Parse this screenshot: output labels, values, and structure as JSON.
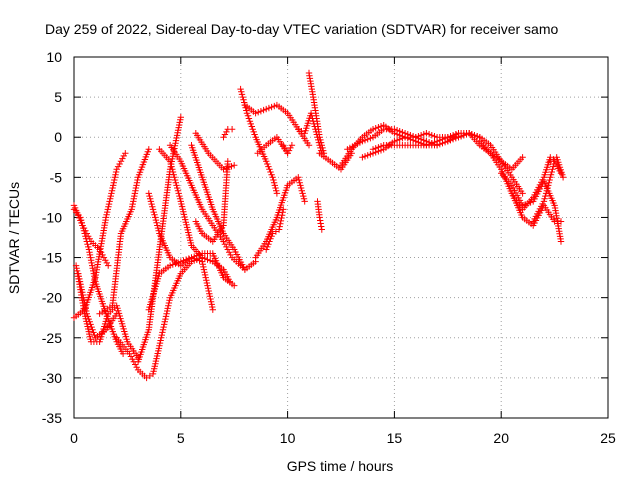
{
  "chart_data": {
    "type": "scatter",
    "title": "Day 259 of 2022, Sidereal Day-to-day VTEC variation (SDTVAR) for receiver samo",
    "xlabel": "GPS time / hours",
    "ylabel": "SDTVAR / TECUs",
    "xlim": [
      0,
      25
    ],
    "ylim": [
      -35,
      10
    ],
    "xticks": [
      0,
      5,
      10,
      15,
      20,
      25
    ],
    "yticks": [
      -35,
      -30,
      -25,
      -20,
      -15,
      -10,
      -5,
      0,
      5,
      10
    ],
    "grid": true,
    "marker": "+",
    "color": "#ff0000",
    "series": [
      {
        "name": "s1",
        "x": [
          0.0,
          0.5,
          1.0,
          1.5,
          2.0,
          2.4
        ],
        "y": [
          -22.5,
          -21.5,
          -17.5,
          -10.0,
          -4.0,
          -2.0
        ]
      },
      {
        "name": "s2",
        "x": [
          0.0,
          0.3,
          0.7,
          1.0,
          1.5,
          2.0,
          2.3
        ],
        "y": [
          -9.0,
          -10.0,
          -14.0,
          -18.0,
          -22.0,
          -25.5,
          -27.0
        ]
      },
      {
        "name": "s3",
        "x": [
          0.2,
          0.6,
          1.0,
          1.5,
          2.0
        ],
        "y": [
          -17.0,
          -22.0,
          -25.0,
          -24.0,
          -22.0
        ]
      },
      {
        "name": "s4",
        "x": [
          0.1,
          0.5,
          0.8,
          1.2,
          1.6,
          2.0,
          2.5,
          3.0
        ],
        "y": [
          -16.0,
          -22.0,
          -25.5,
          -25.5,
          -22.0,
          -21.0,
          -25.5,
          -27.5
        ]
      },
      {
        "name": "s5",
        "x": [
          0.0,
          0.4,
          0.8,
          1.2,
          1.6
        ],
        "y": [
          -8.5,
          -11.0,
          -13.0,
          -14.0,
          -16.0
        ]
      },
      {
        "name": "s6",
        "x": [
          1.2,
          1.8,
          2.2,
          2.7,
          3.0,
          3.5
        ],
        "y": [
          -22.0,
          -21.0,
          -12.0,
          -9.0,
          -5.0,
          -1.5
        ]
      },
      {
        "name": "s7",
        "x": [
          2.0,
          2.6,
          3.0,
          3.4,
          3.7,
          4.0,
          4.5,
          5.0,
          5.5,
          6.0
        ],
        "y": [
          -25.0,
          -27.0,
          -29.0,
          -30.0,
          -29.5,
          -26.0,
          -20.0,
          -17.0,
          -15.5,
          -15.0
        ]
      },
      {
        "name": "s8",
        "x": [
          3.0,
          3.5,
          4.0,
          4.5,
          5.0
        ],
        "y": [
          -28.0,
          -24.0,
          -14.0,
          -4.0,
          2.5
        ]
      },
      {
        "name": "s9",
        "x": [
          3.5,
          4.0,
          4.5,
          5.0,
          5.5,
          6.0,
          6.5
        ],
        "y": [
          -7.0,
          -12.0,
          -15.0,
          -16.0,
          -15.0,
          -15.5,
          -21.5
        ]
      },
      {
        "name": "s10",
        "x": [
          4.0,
          4.5,
          5.0,
          5.5,
          6.0,
          6.5,
          7.0,
          7.3
        ],
        "y": [
          -1.5,
          -3.0,
          -8.0,
          -13.5,
          -15.0,
          -15.5,
          -16.5,
          -18.0
        ]
      },
      {
        "name": "s11",
        "x": [
          4.5,
          5.0,
          5.5,
          6.0,
          6.5,
          7.0,
          7.4,
          8.0
        ],
        "y": [
          -1.0,
          -3.0,
          -6.0,
          -9.0,
          -11.0,
          -13.0,
          -15.0,
          -16.5
        ]
      },
      {
        "name": "s12",
        "x": [
          5.5,
          6.0,
          6.5,
          7.0,
          7.5,
          8.0,
          8.5
        ],
        "y": [
          -1.0,
          -5.0,
          -9.0,
          -12.0,
          -14.0,
          -16.5,
          -15.5
        ]
      },
      {
        "name": "s13",
        "x": [
          3.5,
          4.0,
          4.5,
          5.0,
          5.5,
          6.0,
          6.5,
          7.0,
          7.5
        ],
        "y": [
          -21.5,
          -17.0,
          -16.0,
          -15.5,
          -15.0,
          -14.5,
          -14.5,
          -17.5,
          -18.5
        ]
      },
      {
        "name": "s14",
        "x": [
          5.7,
          6.0,
          6.5,
          7.0,
          7.2
        ],
        "y": [
          -10.5,
          -12.0,
          -13.0,
          -11.0,
          -3.0
        ]
      },
      {
        "name": "s15",
        "x": [
          5.7,
          6.3,
          7.0,
          7.5
        ],
        "y": [
          0.5,
          -2.0,
          -4.0,
          -3.5
        ]
      },
      {
        "name": "s16",
        "x": [
          7.0,
          7.2,
          7.4
        ],
        "y": [
          0.0,
          1.0,
          1.0
        ]
      },
      {
        "name": "s17",
        "x": [
          7.8,
          8.1,
          8.5,
          9.0,
          9.3,
          9.5
        ],
        "y": [
          6.0,
          3.0,
          0.0,
          -3.0,
          -5.0,
          -7.0
        ]
      },
      {
        "name": "s18",
        "x": [
          8.0,
          8.5,
          9.0,
          9.5,
          10.0,
          10.5,
          11.0
        ],
        "y": [
          4.0,
          3.0,
          3.5,
          4.0,
          3.0,
          1.0,
          -1.0
        ]
      },
      {
        "name": "s19",
        "x": [
          8.5,
          9.0,
          9.5,
          10.0,
          10.5,
          10.8
        ],
        "y": [
          -15.0,
          -13.0,
          -10.0,
          -6.0,
          -5.0,
          -8.0
        ]
      },
      {
        "name": "s20",
        "x": [
          8.6,
          9.0,
          9.5,
          10.0
        ],
        "y": [
          -2.0,
          -1.0,
          0.0,
          -2.0
        ]
      },
      {
        "name": "s21",
        "x": [
          9.0,
          9.3,
          9.6,
          9.8
        ],
        "y": [
          -14.0,
          -12.0,
          -11.5,
          -9.0
        ]
      },
      {
        "name": "s22",
        "x": [
          9.8,
          10.0,
          10.2
        ],
        "y": [
          -1.0,
          -2.0,
          -1.0
        ]
      },
      {
        "name": "s23",
        "x": [
          10.5,
          10.8,
          11.1,
          11.4,
          11.6
        ],
        "y": [
          1.0,
          0.5,
          3.0,
          0.0,
          -2.0
        ]
      },
      {
        "name": "s24",
        "x": [
          11.0,
          11.2,
          11.5,
          11.7
        ],
        "y": [
          8.0,
          5.0,
          0.0,
          -2.0
        ]
      },
      {
        "name": "s25",
        "x": [
          11.5,
          12.0,
          12.5,
          13.0
        ],
        "y": [
          -2.0,
          -3.0,
          -4.0,
          -2.0
        ]
      },
      {
        "name": "s26",
        "x": [
          11.4,
          11.5,
          11.6
        ],
        "y": [
          -8.0,
          -10.0,
          -11.5
        ]
      },
      {
        "name": "s27",
        "x": [
          12.5,
          13.0,
          13.5,
          14.0,
          14.5,
          15.0,
          15.5,
          16.0,
          16.5,
          17.0,
          17.5,
          18.0
        ],
        "y": [
          -3.5,
          -1.5,
          0.0,
          1.0,
          1.5,
          0.5,
          0.0,
          -0.5,
          -1.0,
          -0.5,
          0.0,
          0.5
        ]
      },
      {
        "name": "s28",
        "x": [
          13.5,
          14.0,
          14.5,
          15.0,
          15.5,
          16.0,
          16.5,
          17.0,
          17.5,
          18.0,
          18.5,
          19.0,
          19.5,
          20.0,
          20.5,
          21.0
        ],
        "y": [
          -2.5,
          -2.0,
          -1.5,
          -0.5,
          0.0,
          0.0,
          0.5,
          0.0,
          0.0,
          0.0,
          0.5,
          0.0,
          -1.0,
          -3.0,
          -5.0,
          -7.0
        ]
      },
      {
        "name": "s29",
        "x": [
          12.8,
          13.5,
          14.0,
          14.5,
          15.0,
          15.5,
          16.0,
          16.5,
          17.0
        ],
        "y": [
          -1.5,
          -0.5,
          0.0,
          1.0,
          1.0,
          0.5,
          0.0,
          -0.5,
          -1.0
        ]
      },
      {
        "name": "s30",
        "x": [
          14.0,
          14.5,
          15.0,
          15.5,
          16.0,
          16.5,
          17.0,
          17.5,
          18.0,
          18.5,
          19.0
        ],
        "y": [
          -1.5,
          -1.0,
          -1.0,
          -1.0,
          -1.0,
          -1.0,
          -1.0,
          -0.5,
          0.0,
          0.5,
          0.0
        ]
      },
      {
        "name": "s31",
        "x": [
          17.5,
          18.0,
          18.5,
          19.0,
          19.5,
          20.0,
          20.5,
          21.0
        ],
        "y": [
          -0.5,
          0.5,
          0.5,
          -1.0,
          -2.0,
          -3.0,
          -4.0,
          -2.5
        ]
      },
      {
        "name": "s32",
        "x": [
          19.0,
          19.5,
          20.0,
          20.5,
          21.0,
          21.5,
          22.0,
          22.5,
          22.8
        ],
        "y": [
          -0.5,
          -2.0,
          -4.0,
          -7.0,
          -10.0,
          -11.0,
          -8.5,
          -10.5,
          -10.5
        ]
      },
      {
        "name": "s33",
        "x": [
          20.0,
          20.5,
          21.0,
          21.5,
          22.0,
          22.5,
          22.8
        ],
        "y": [
          -4.5,
          -6.0,
          -8.5,
          -8.0,
          -5.5,
          -8.5,
          -13.0
        ]
      },
      {
        "name": "s34",
        "x": [
          20.5,
          21.0,
          21.5,
          22.0,
          22.3
        ],
        "y": [
          -7.0,
          -9.0,
          -7.5,
          -5.0,
          -2.5
        ]
      },
      {
        "name": "s35",
        "x": [
          21.5,
          22.0,
          22.5,
          22.8
        ],
        "y": [
          -10.5,
          -8.0,
          -3.0,
          -4.5
        ]
      },
      {
        "name": "s36",
        "x": [
          22.3,
          22.6,
          22.9
        ],
        "y": [
          -3.0,
          -2.5,
          -5.0
        ]
      }
    ]
  }
}
